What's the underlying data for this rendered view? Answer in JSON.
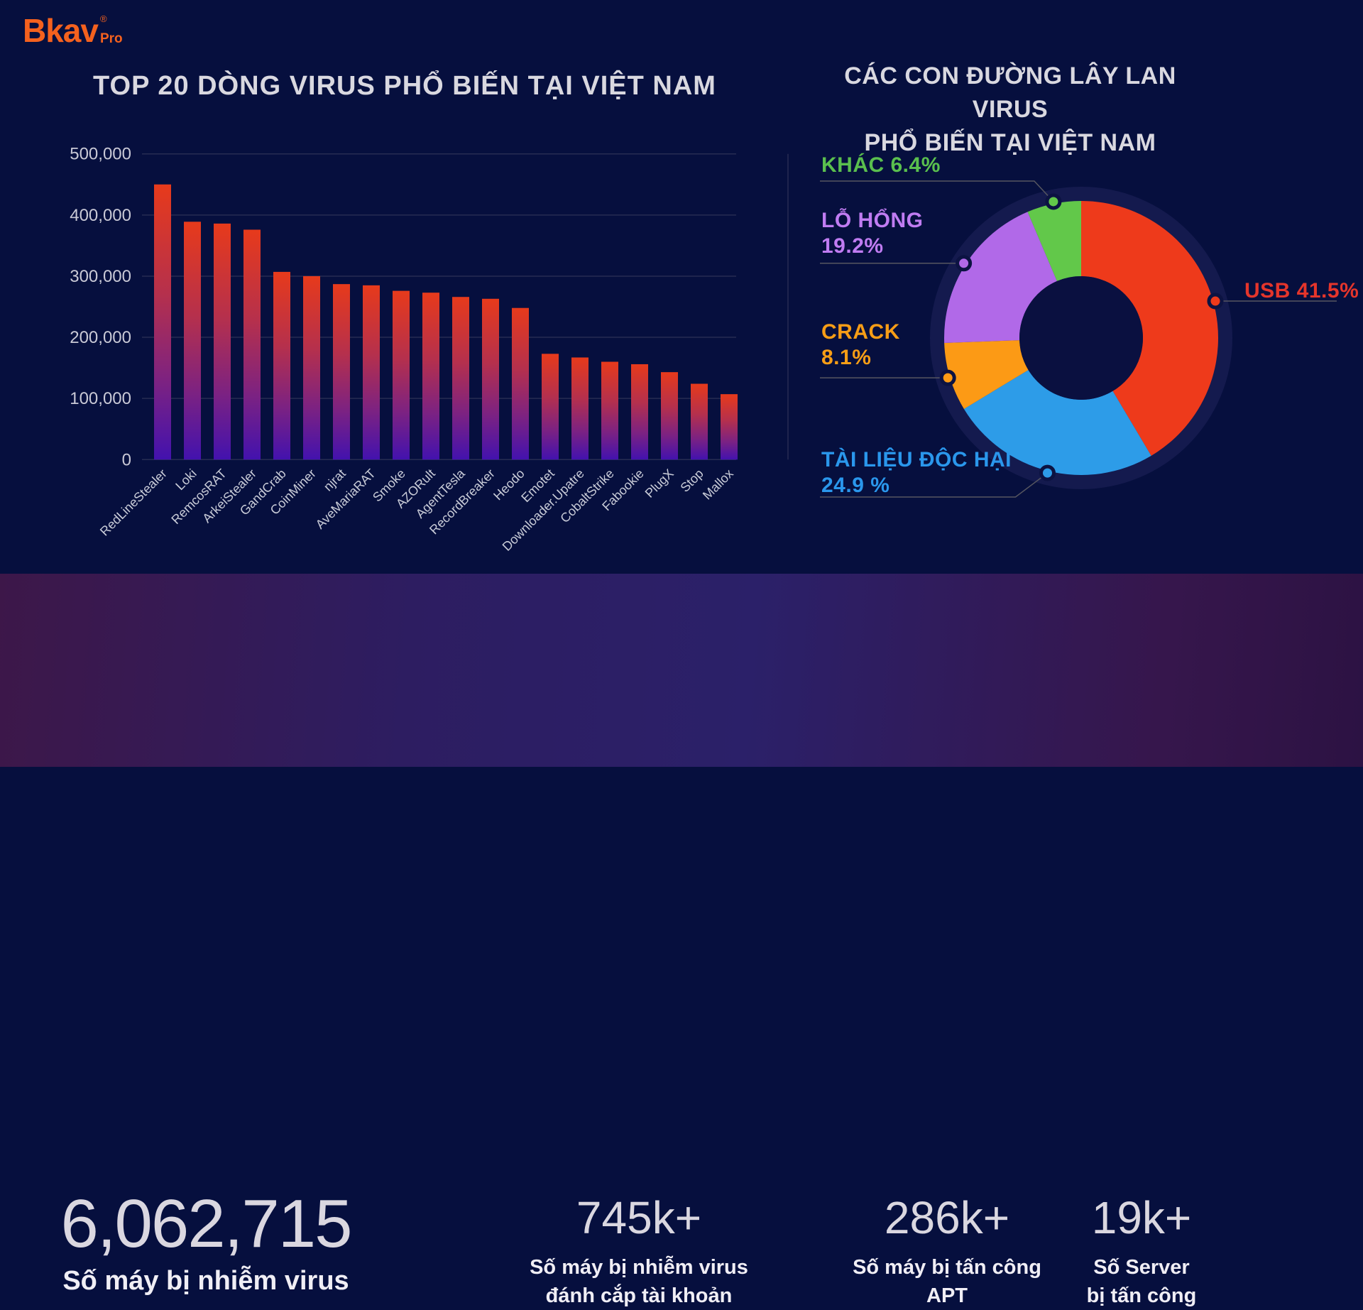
{
  "logo": {
    "brand": "Bkav",
    "registered": "®",
    "suffix": "Pro"
  },
  "bar_section": {
    "title": "TOP 20 DÒNG VIRUS PHỔ BIẾN TẠI VIỆT NAM"
  },
  "pie_section": {
    "title_line1": "CÁC CON ĐƯỜNG LÂY LAN VIRUS",
    "title_line2": "PHỔ BIẾN TẠI VIỆT NAM"
  },
  "chart_data": [
    {
      "type": "bar",
      "title": "TOP 20 DÒNG VIRUS PHỔ BIẾN TẠI VIỆT NAM",
      "categories": [
        "RedLineStealer",
        "Loki",
        "RemcosRAT",
        "ArkeiStealer",
        "GandCrab",
        "CoinMiner",
        "njrat",
        "AveMariaRAT",
        "Smoke",
        "AZORult",
        "AgentTesla",
        "RecordBreaker",
        "Heodo",
        "Emotet",
        "Downloader.Upatre",
        "CobaltStrike",
        "Fabookie",
        "PlugX",
        "Stop",
        "Mallox"
      ],
      "values": [
        450000,
        389000,
        386000,
        376000,
        307000,
        300000,
        287000,
        285000,
        276000,
        273000,
        266000,
        263000,
        248000,
        173000,
        167000,
        160000,
        156000,
        143000,
        124000,
        107000
      ],
      "ylim": [
        0,
        500000
      ],
      "y_ticks": [
        "500,000",
        "400,000",
        "300,000",
        "200,000",
        "100,000",
        "0"
      ],
      "grid": true,
      "bar_gradient_top": "#e73a1b",
      "bar_gradient_mid": "#a02e56",
      "bar_gradient_bottom": "#4312ae",
      "axis_text_color": "#c9c9d6"
    },
    {
      "type": "pie",
      "donut": true,
      "title": "CÁC CON ĐƯỜNG LÂY LAN VIRUS PHỔ BIẾN TẠI VIỆT NAM",
      "direction": "clockwise",
      "start_angle": "12-oclock",
      "slices": [
        {
          "label": "USB",
          "pct": 41.5,
          "display": "USB 41.5%",
          "color": "#ee3a1b",
          "label_color": "#e5352b"
        },
        {
          "label": "TÀI LIỆU ĐỘC HẠI",
          "pct": 24.9,
          "display_line1": "TÀI LIỆU ĐỘC HẠI",
          "display_line2": "24.9 %",
          "color": "#2d9ce8",
          "label_color": "#2a97ec"
        },
        {
          "label": "CRACK",
          "pct": 8.1,
          "display_line1": "CRACK",
          "display_line2": "8.1%",
          "color": "#fc9a15",
          "label_color": "#f79d16"
        },
        {
          "label": "LỖ HỔNG",
          "pct": 19.2,
          "display_line1": "LỖ HỔNG",
          "display_line2": "19.2%",
          "color": "#b169e8",
          "label_color": "#c07cf2"
        },
        {
          "label": "KHÁC",
          "pct": 6.4,
          "display": "KHÁC 6.4%",
          "color": "#62c84a",
          "label_color": "#5abf4e"
        }
      ]
    }
  ],
  "stats": [
    {
      "value": "6,062,715",
      "caption_lines": [
        "Số máy bị nhiễm virus"
      ]
    },
    {
      "value": "745k+",
      "caption_lines": [
        "Số máy bị nhiễm virus",
        "đánh cắp tài khoản"
      ]
    },
    {
      "value": "286k+",
      "caption_lines": [
        "Số máy bị tấn công",
        "APT"
      ]
    },
    {
      "value": "19k+",
      "caption_lines": [
        "Số Server",
        "bị tấn công"
      ]
    }
  ]
}
